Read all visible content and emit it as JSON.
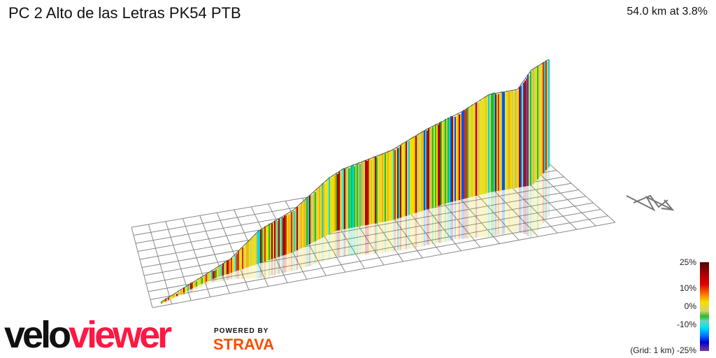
{
  "header": {
    "title": "PC 2 Alto de las Letras PK54 PTB",
    "summary": "54.0 km at 3.8%"
  },
  "chart_data": {
    "type": "3d-elevation-profile",
    "title": "PC 2 Alto de las Letras PK54 PTB",
    "distance_km": 54.0,
    "avg_gradient_pct": 3.8,
    "grid": "1 km",
    "legend": {
      "title": "(Grid: 1 km)",
      "ticks": [
        "25%",
        "10%",
        "0%",
        "-10%",
        "-25%"
      ],
      "colors": [
        "#4a0a0a",
        "#e00000",
        "#f0e000",
        "#20c020",
        "#00e8f0",
        "#0000d0",
        "#7a3a9a"
      ]
    }
  },
  "legend": {
    "t25": "25%",
    "t10": "10%",
    "t0": "0%",
    "tm10": "-10%",
    "grid": "(Grid: 1 km) -25%"
  },
  "branding": {
    "velo": "velo",
    "viewer": "viewer",
    "powered": "POWERED BY",
    "strava": "STRAVA"
  }
}
